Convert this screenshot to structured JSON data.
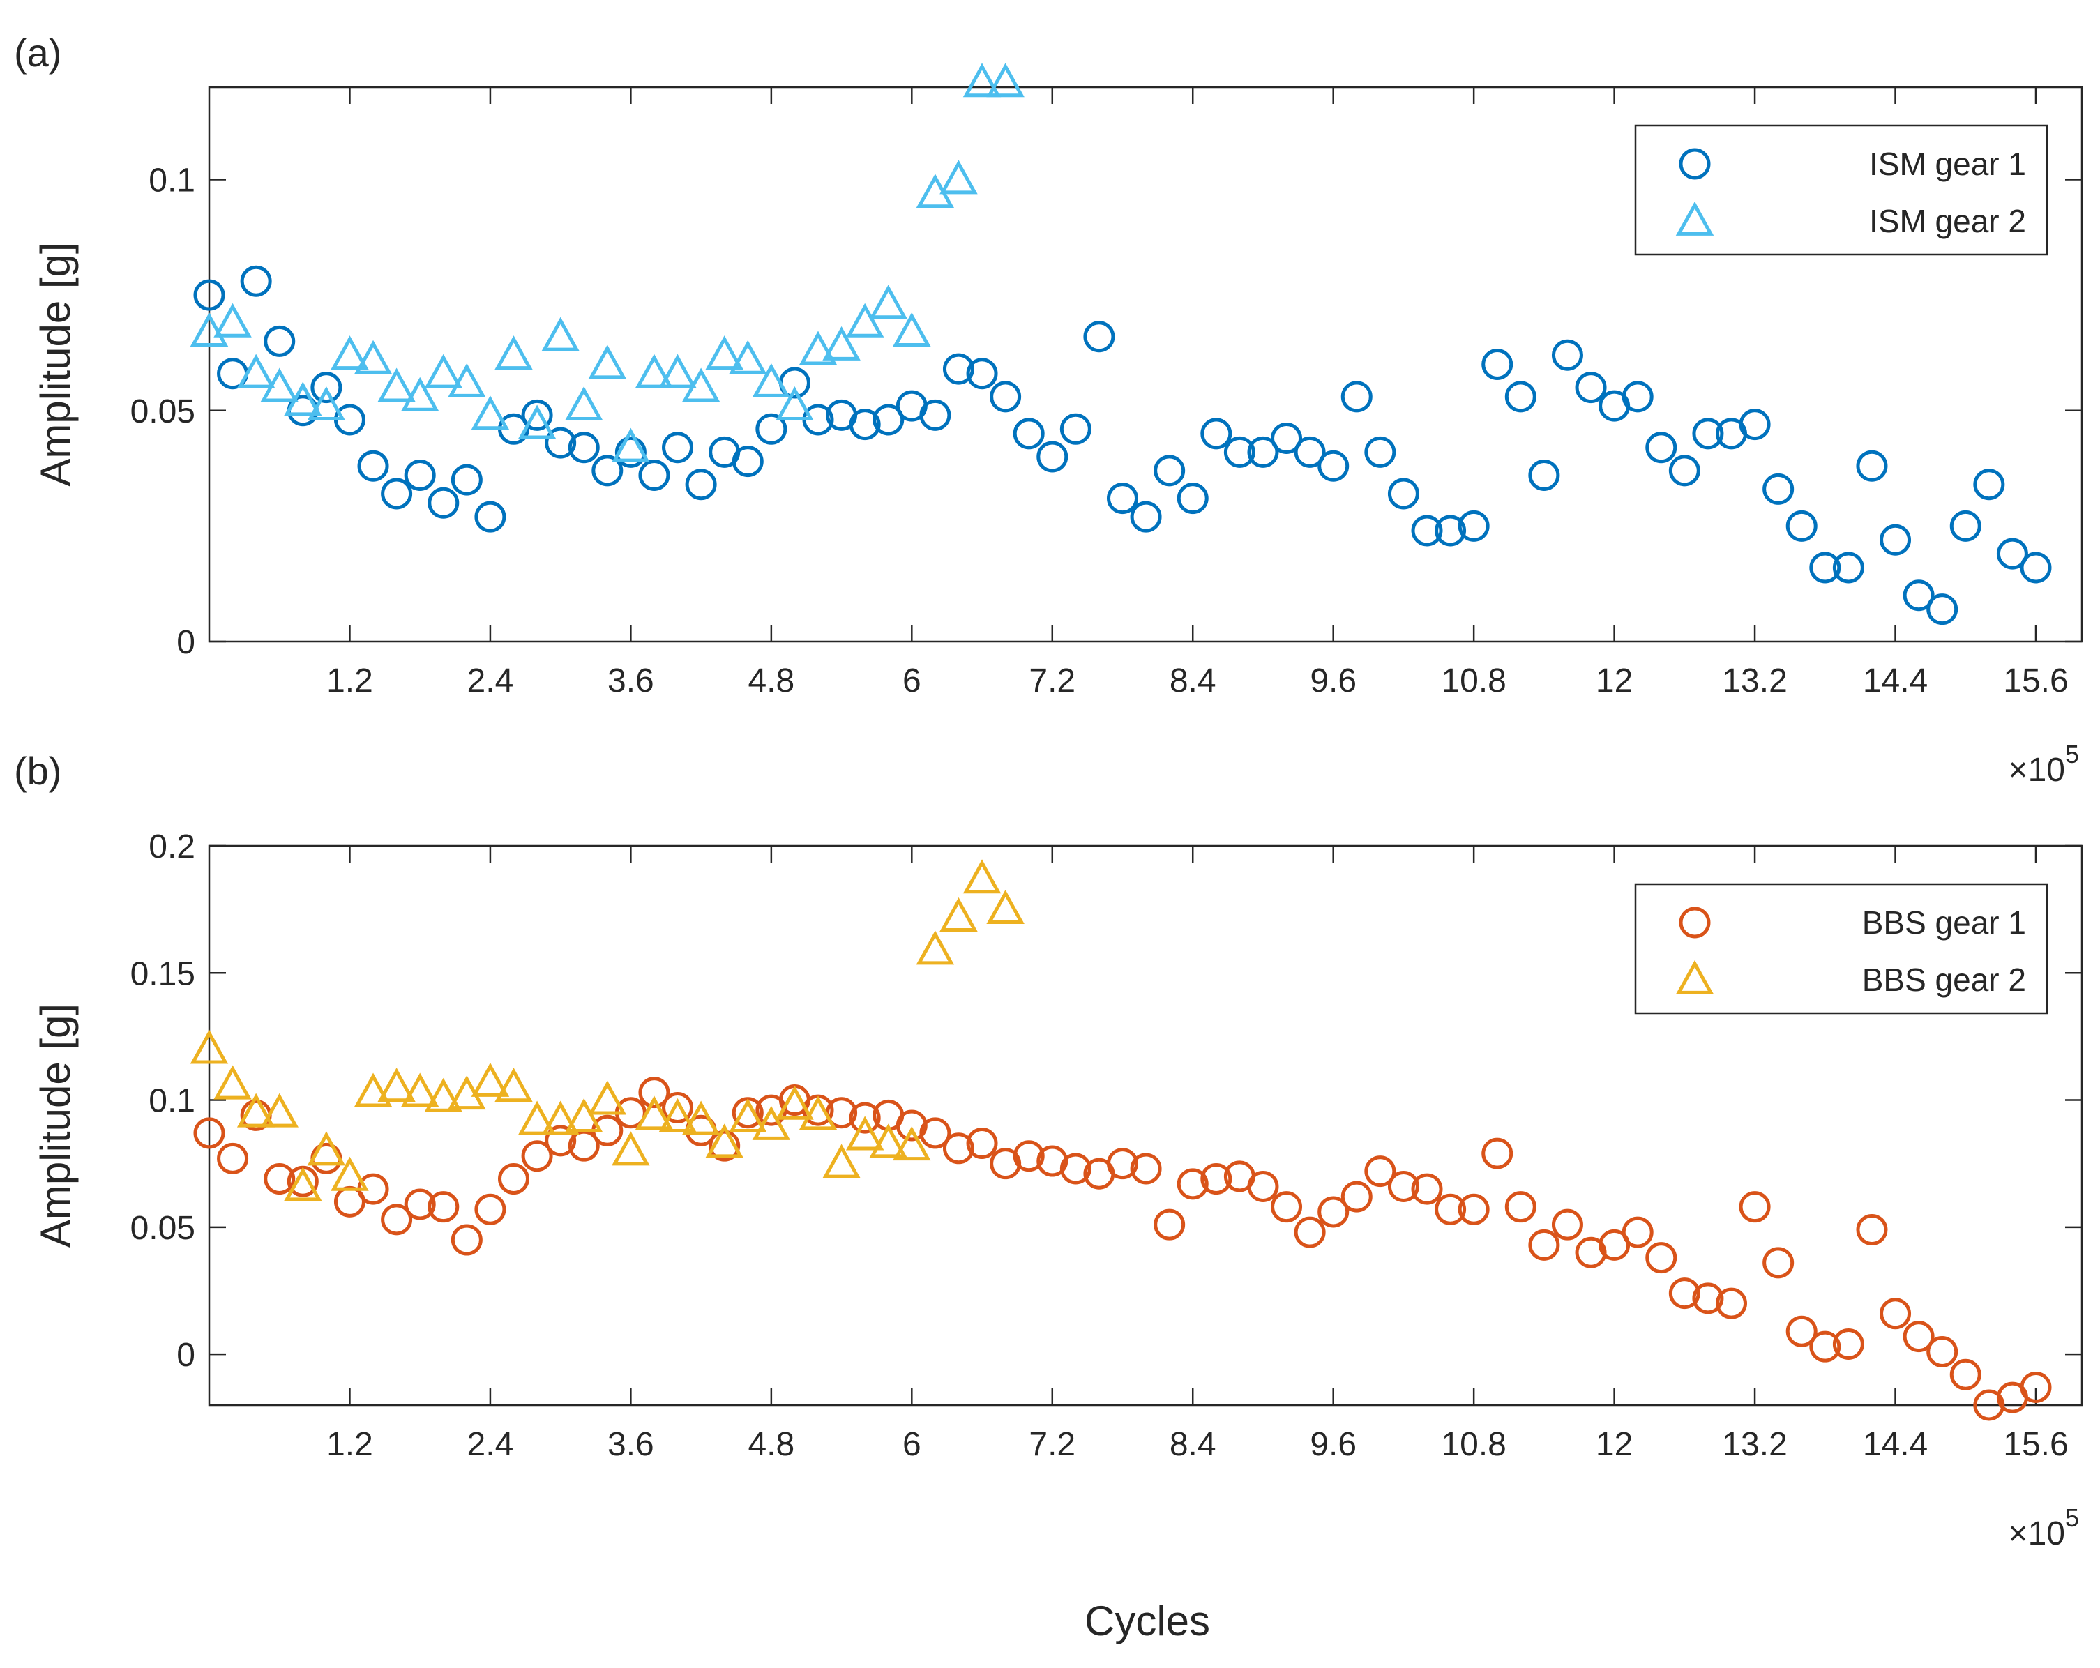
{
  "figure": {
    "xlabel": "Cycles",
    "xscale_exponent_label": "×10",
    "xscale_exponent_power": "5"
  },
  "chart_data": [
    {
      "type": "scatter",
      "panel_label": "(a)",
      "xlabel": "",
      "ylabel": "Amplitude [g]",
      "xlim": [
        0,
        16
      ],
      "ylim": [
        0,
        0.12
      ],
      "x_multiplier": "×10^5",
      "xticks": [
        1.2,
        2.4,
        3.6,
        4.8,
        6,
        7.2,
        8.4,
        9.6,
        10.8,
        12,
        13.2,
        14.4,
        15.6
      ],
      "xtick_labels": [
        "1.2",
        "2.4",
        "3.6",
        "4.8",
        "6",
        "7.2",
        "8.4",
        "9.6",
        "10.8",
        "12",
        "13.2",
        "14.4",
        "15.6"
      ],
      "yticks": [
        0,
        0.05,
        0.1
      ],
      "ytick_labels": [
        "0",
        "0.05",
        "0.1"
      ],
      "legend_position": "top-right",
      "series": [
        {
          "name": "ISM gear 1",
          "marker": "circle",
          "color": "#0072BD",
          "x": [
            0,
            0.2,
            0.4,
            0.6,
            0.8,
            1.0,
            1.2,
            1.4,
            1.6,
            1.8,
            2.0,
            2.2,
            2.4,
            2.6,
            2.8,
            3.0,
            3.2,
            3.4,
            3.6,
            3.8,
            4.0,
            4.2,
            4.4,
            4.6,
            4.8,
            5.0,
            5.2,
            5.4,
            5.6,
            5.8,
            6.0,
            6.2,
            6.4,
            6.6,
            6.8,
            7.0,
            7.2,
            7.4,
            7.6,
            7.8,
            8.0,
            8.2,
            8.4,
            8.6,
            8.8,
            9.0,
            9.2,
            9.4,
            9.6,
            9.8,
            10.0,
            10.2,
            10.4,
            10.6,
            10.8,
            11.0,
            11.2,
            11.4,
            11.6,
            11.8,
            12.0,
            12.2,
            12.4,
            12.6,
            12.8,
            13.0,
            13.2,
            13.4,
            13.6,
            13.8,
            14.0,
            14.2,
            14.4,
            14.6,
            14.8,
            15.0,
            15.2,
            15.4,
            15.6
          ],
          "y": [
            0.075,
            0.058,
            0.078,
            0.065,
            0.05,
            0.055,
            0.048,
            0.038,
            0.032,
            0.036,
            0.03,
            0.035,
            0.027,
            0.046,
            0.049,
            0.043,
            0.042,
            0.037,
            0.041,
            0.036,
            0.042,
            0.034,
            0.041,
            0.039,
            0.046,
            0.056,
            0.048,
            0.049,
            0.047,
            0.048,
            0.051,
            0.049,
            0.059,
            0.058,
            0.053,
            0.045,
            0.04,
            0.046,
            0.066,
            0.031,
            0.027,
            0.037,
            0.031,
            0.045,
            0.041,
            0.041,
            0.044,
            0.041,
            0.038,
            0.053,
            0.041,
            0.032,
            0.024,
            0.024,
            0.025,
            0.06,
            0.053,
            0.036,
            0.062,
            0.055,
            0.051,
            0.053,
            0.042,
            0.037,
            0.045,
            0.045,
            0.047,
            0.033,
            0.025,
            0.016,
            0.016,
            0.038,
            0.022,
            0.01,
            0.007,
            0.025,
            0.034,
            0.019,
            0.016
          ]
        },
        {
          "name": "ISM gear 2",
          "marker": "triangle",
          "color": "#4DBEEE",
          "x": [
            0,
            0.2,
            0.4,
            0.6,
            0.8,
            1.0,
            1.2,
            1.4,
            1.6,
            1.8,
            2.0,
            2.2,
            2.4,
            2.6,
            2.8,
            3.0,
            3.2,
            3.4,
            3.6,
            3.8,
            4.0,
            4.2,
            4.4,
            4.6,
            4.8,
            5.0,
            5.2,
            5.4,
            5.6,
            5.8,
            6.0,
            6.2,
            6.4,
            6.6,
            6.8
          ],
          "y": [
            0.067,
            0.069,
            0.058,
            0.055,
            0.052,
            0.051,
            0.062,
            0.061,
            0.055,
            0.053,
            0.058,
            0.056,
            0.049,
            0.062,
            0.047,
            0.066,
            0.051,
            0.06,
            0.042,
            0.058,
            0.058,
            0.055,
            0.062,
            0.061,
            0.056,
            0.051,
            0.063,
            0.064,
            0.069,
            0.073,
            0.067,
            0.097,
            0.1,
            0.121,
            0.121
          ]
        }
      ]
    },
    {
      "type": "scatter",
      "panel_label": "(b)",
      "xlabel": "Cycles",
      "ylabel": "Amplitude [g]",
      "xlim": [
        0,
        16
      ],
      "ylim": [
        -0.02,
        0.2
      ],
      "x_multiplier": "×10^5",
      "xticks": [
        1.2,
        2.4,
        3.6,
        4.8,
        6,
        7.2,
        8.4,
        9.6,
        10.8,
        12,
        13.2,
        14.4,
        15.6
      ],
      "xtick_labels": [
        "1.2",
        "2.4",
        "3.6",
        "4.8",
        "6",
        "7.2",
        "8.4",
        "9.6",
        "10.8",
        "12",
        "13.2",
        "14.4",
        "15.6"
      ],
      "yticks": [
        0,
        0.05,
        0.1,
        0.15,
        0.2
      ],
      "ytick_labels": [
        "0",
        "0.05",
        "0.1",
        "0.15",
        "0.2"
      ],
      "legend_position": "top-right",
      "series": [
        {
          "name": "BBS gear 1",
          "marker": "circle",
          "color": "#D95319",
          "x": [
            0,
            0.2,
            0.4,
            0.6,
            0.8,
            1.0,
            1.2,
            1.4,
            1.6,
            1.8,
            2.0,
            2.2,
            2.4,
            2.6,
            2.8,
            3.0,
            3.2,
            3.4,
            3.6,
            3.8,
            4.0,
            4.2,
            4.4,
            4.6,
            4.8,
            5.0,
            5.2,
            5.4,
            5.6,
            5.8,
            6.0,
            6.2,
            6.4,
            6.6,
            6.8,
            7.0,
            7.2,
            7.4,
            7.6,
            7.8,
            8.0,
            8.2,
            8.4,
            8.6,
            8.8,
            9.0,
            9.2,
            9.4,
            9.6,
            9.8,
            10.0,
            10.2,
            10.4,
            10.6,
            10.8,
            11.0,
            11.2,
            11.4,
            11.6,
            11.8,
            12.0,
            12.2,
            12.4,
            12.6,
            12.8,
            13.0,
            13.2,
            13.4,
            13.6,
            13.8,
            14.0,
            14.2,
            14.4,
            14.6,
            14.8,
            15.0,
            15.2,
            15.4,
            15.6
          ],
          "y": [
            0.087,
            0.077,
            0.094,
            0.069,
            0.068,
            0.077,
            0.06,
            0.065,
            0.053,
            0.059,
            0.058,
            0.045,
            0.057,
            0.069,
            0.078,
            0.084,
            0.082,
            0.088,
            0.095,
            0.103,
            0.097,
            0.088,
            0.082,
            0.095,
            0.096,
            0.1,
            0.096,
            0.095,
            0.093,
            0.094,
            0.09,
            0.087,
            0.081,
            0.083,
            0.075,
            0.078,
            0.076,
            0.073,
            0.071,
            0.075,
            0.073,
            0.051,
            0.067,
            0.069,
            0.07,
            0.066,
            0.058,
            0.048,
            0.056,
            0.062,
            0.072,
            0.066,
            0.065,
            0.057,
            0.057,
            0.079,
            0.058,
            0.043,
            0.051,
            0.04,
            0.043,
            0.048,
            0.038,
            0.024,
            0.022,
            0.02,
            0.058,
            0.036,
            0.009,
            0.003,
            0.004,
            0.049,
            0.016,
            0.007,
            0.001,
            -0.008,
            -0.02,
            -0.017,
            -0.013
          ]
        },
        {
          "name": "BBS gear 2",
          "marker": "triangle",
          "color": "#EDB120",
          "x": [
            0,
            0.2,
            0.4,
            0.6,
            0.8,
            1.0,
            1.2,
            1.4,
            1.6,
            1.8,
            2.0,
            2.2,
            2.4,
            2.6,
            2.8,
            3.0,
            3.2,
            3.4,
            3.6,
            3.8,
            4.0,
            4.2,
            4.4,
            4.6,
            4.8,
            5.0,
            5.2,
            5.4,
            5.6,
            5.8,
            6.0,
            6.2,
            6.4,
            6.6,
            6.8
          ],
          "y": [
            0.12,
            0.106,
            0.095,
            0.095,
            0.066,
            0.08,
            0.07,
            0.103,
            0.105,
            0.103,
            0.101,
            0.102,
            0.107,
            0.105,
            0.092,
            0.092,
            0.093,
            0.1,
            0.08,
            0.094,
            0.093,
            0.092,
            0.083,
            0.093,
            0.09,
            0.098,
            0.094,
            0.075,
            0.086,
            0.083,
            0.082,
            0.159,
            0.172,
            0.187,
            0.175
          ]
        }
      ]
    }
  ]
}
